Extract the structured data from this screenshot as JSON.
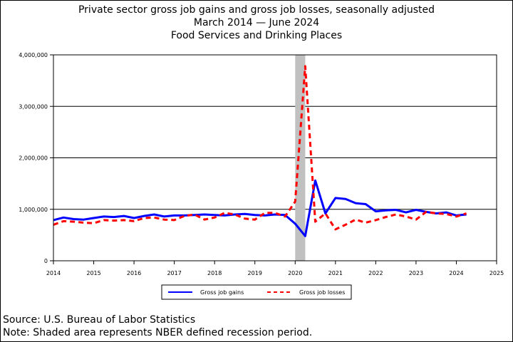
{
  "title": {
    "line1": "Private sector gross job gains and gross job losses, seasonally adjusted",
    "line2": "March 2014 — June 2024",
    "line3": "Food Services and Drinking Places"
  },
  "footer": {
    "source": "Source: U.S. Bureau of Labor Statistics",
    "note": "Note: Shaded area represents NBER defined recession period."
  },
  "colors": {
    "gains": "#0000ff",
    "losses": "#ff0000",
    "recession": "#c0c0c0"
  },
  "chart_data": {
    "type": "line",
    "title": "Private sector gross job gains and gross job losses, seasonally adjusted",
    "xlabel": "",
    "ylabel": "",
    "xlim": [
      2014,
      2025
    ],
    "ylim": [
      0,
      4000000
    ],
    "grid": true,
    "legend_placement": "bottom",
    "x_ticks": [
      "2014",
      "2015",
      "2016",
      "2017",
      "2018",
      "2019",
      "2020",
      "2021",
      "2022",
      "2023",
      "2024",
      "2025"
    ],
    "y_ticks": [
      {
        "value": 0,
        "label": "0"
      },
      {
        "value": 1000000,
        "label": "1,000,000"
      },
      {
        "value": 2000000,
        "label": "2,000,000"
      },
      {
        "value": 3000000,
        "label": "3,000,000"
      },
      {
        "value": 4000000,
        "label": "4,000,000"
      }
    ],
    "recession": [
      2020.0,
      2020.25
    ],
    "x": [
      2014.0,
      2014.25,
      2014.5,
      2014.75,
      2015.0,
      2015.25,
      2015.5,
      2015.75,
      2016.0,
      2016.25,
      2016.5,
      2016.75,
      2017.0,
      2017.25,
      2017.5,
      2017.75,
      2018.0,
      2018.25,
      2018.5,
      2018.75,
      2019.0,
      2019.25,
      2019.5,
      2019.75,
      2020.0,
      2020.25,
      2020.5,
      2020.75,
      2021.0,
      2021.25,
      2021.5,
      2021.75,
      2022.0,
      2022.25,
      2022.5,
      2022.75,
      2023.0,
      2023.25,
      2023.5,
      2023.75,
      2024.0,
      2024.25
    ],
    "series": [
      {
        "name": "Gross job gains",
        "style": "solid",
        "values": [
          790000,
          840000,
          810000,
          800000,
          830000,
          860000,
          850000,
          870000,
          830000,
          870000,
          900000,
          860000,
          880000,
          880000,
          890000,
          900000,
          890000,
          880000,
          900000,
          910000,
          890000,
          880000,
          900000,
          890000,
          720000,
          480000,
          1560000,
          920000,
          1220000,
          1200000,
          1120000,
          1100000,
          960000,
          980000,
          990000,
          940000,
          990000,
          950000,
          920000,
          940000,
          880000,
          900000
        ]
      },
      {
        "name": "Gross job losses",
        "style": "dashed",
        "values": [
          700000,
          770000,
          760000,
          740000,
          730000,
          790000,
          780000,
          790000,
          770000,
          830000,
          840000,
          800000,
          790000,
          870000,
          900000,
          800000,
          840000,
          930000,
          900000,
          820000,
          800000,
          930000,
          930000,
          860000,
          1150000,
          3780000,
          760000,
          920000,
          610000,
          700000,
          800000,
          740000,
          790000,
          850000,
          900000,
          860000,
          800000,
          950000,
          920000,
          910000,
          860000,
          920000
        ]
      }
    ]
  }
}
